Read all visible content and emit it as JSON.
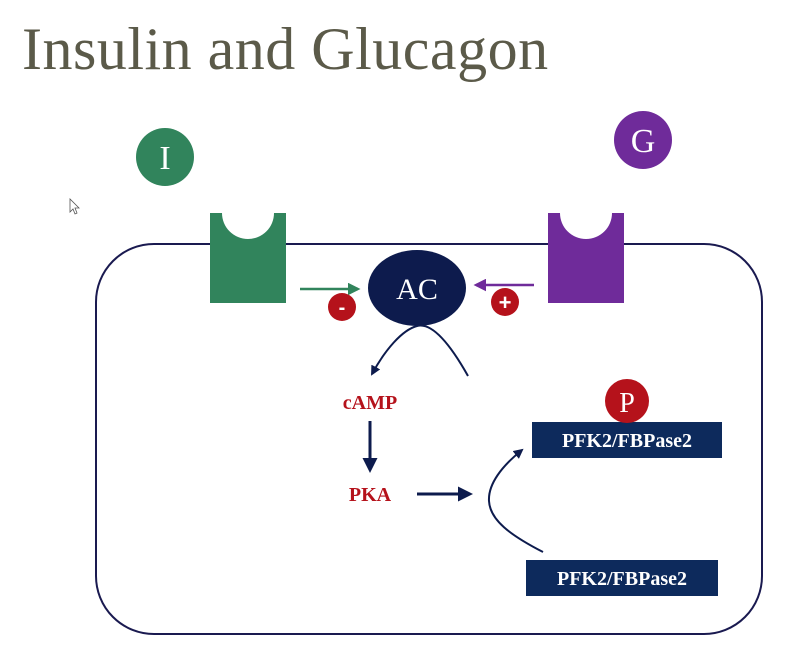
{
  "title": "Insulin and Glucagon",
  "hormones": {
    "insulin": {
      "label": "I",
      "color": "#31845c"
    },
    "glucagon": {
      "label": "G",
      "color": "#6f2b9a"
    }
  },
  "enzyme": {
    "label": "AC",
    "color": "#0d1b4d"
  },
  "signs": {
    "minus": "-",
    "plus": "+",
    "color": "#b5121b"
  },
  "molecules": {
    "camp": "cAMP",
    "pka": "PKA",
    "color": "#b5121b"
  },
  "phosphate": {
    "label": "P",
    "color": "#b5121b"
  },
  "proteins": {
    "phosphorylated": "PFK2/FBPase2",
    "unphosphorylated": "PFK2/FBPase2",
    "color": "#0d2a5c"
  },
  "cell": {
    "border_color": "#1a1a50"
  }
}
